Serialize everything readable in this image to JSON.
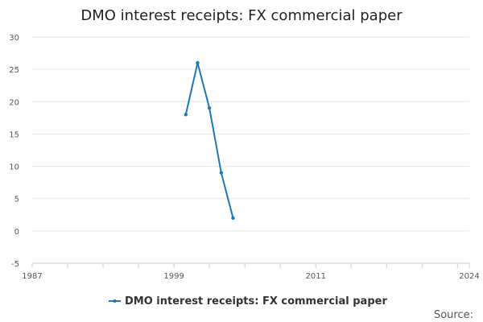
{
  "chart_data": {
    "type": "line",
    "title": "DMO interest receipts: FX commercial paper",
    "xlabel": "",
    "ylabel": "",
    "x": [
      2000,
      2001,
      2002,
      2003,
      2004
    ],
    "series": [
      {
        "name": "DMO interest receipts: FX commercial paper",
        "values": [
          18,
          26,
          19,
          9,
          2
        ]
      }
    ],
    "xlim": [
      1987,
      2024
    ],
    "ylim": [
      -5,
      30
    ],
    "yticks": [
      "30",
      "25",
      "20",
      "15",
      "10",
      "5",
      "0",
      "-5"
    ],
    "xtick_labels": [
      "1987",
      "1999",
      "2011",
      "2024"
    ],
    "grid": true,
    "legend": "bottom",
    "color": "#1f77b4"
  },
  "source_label": "Source:"
}
